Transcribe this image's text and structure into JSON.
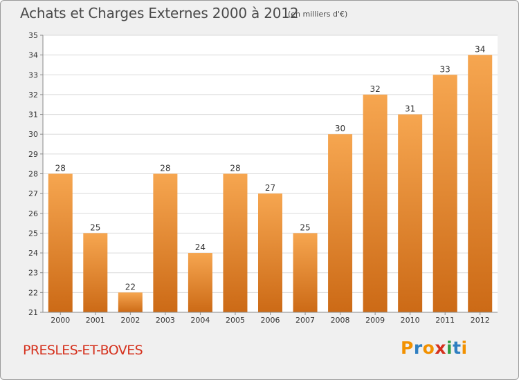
{
  "header": {
    "title": "Achats et Charges Externes 2000 à 2012",
    "unit": "(en milliers d'€)"
  },
  "footer": {
    "place": "PRESLES-ET-BOVES",
    "brand": {
      "letters": [
        "P",
        "r",
        "o",
        "x",
        "i",
        "t",
        "i"
      ],
      "colors": [
        "#f29100",
        "#2f7fc1",
        "#f29100",
        "#d5301c",
        "#2f9e44",
        "#2f7fc1",
        "#f29100"
      ]
    }
  },
  "colors": {
    "bar_top": "#f6a650",
    "bar_bottom": "#cc6a16",
    "grid": "#dadada",
    "plot_bg": "#ffffff",
    "text": "#333333"
  },
  "chart_data": {
    "type": "bar",
    "categories": [
      "2000",
      "2001",
      "2002",
      "2003",
      "2004",
      "2005",
      "2006",
      "2007",
      "2008",
      "2009",
      "2010",
      "2011",
      "2012"
    ],
    "values": [
      28,
      25,
      22,
      28,
      24,
      28,
      27,
      25,
      30,
      32,
      31,
      33,
      34
    ],
    "data_labels": [
      "28",
      "25",
      "22",
      "28",
      "24",
      "28",
      "27",
      "25",
      "30",
      "32",
      "31",
      "33",
      "34"
    ],
    "yticks": [
      "21",
      "22",
      "23",
      "24",
      "25",
      "26",
      "27",
      "28",
      "29",
      "30",
      "31",
      "32",
      "33",
      "34",
      "35"
    ],
    "ylim": [
      21,
      35
    ],
    "grid": true,
    "legend": "none"
  }
}
